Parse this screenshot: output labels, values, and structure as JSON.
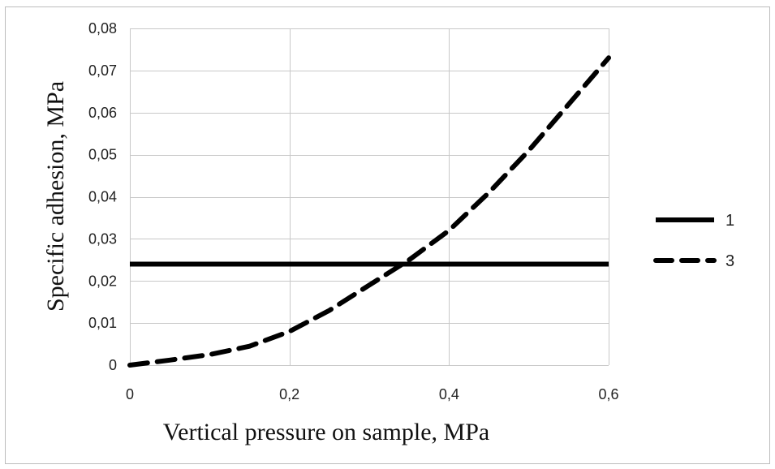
{
  "chart_data": {
    "type": "line",
    "title": "",
    "xlabel": "Vertical pressure on sample, MPa",
    "ylabel": "Specific adhesion, MPa",
    "xlim": [
      0,
      0.6
    ],
    "ylim": [
      0,
      0.08
    ],
    "x_ticks": [
      "0",
      "0,2",
      "0,4",
      "0,6"
    ],
    "x_tick_values": [
      0,
      0.2,
      0.4,
      0.6
    ],
    "y_ticks": [
      "0",
      "0,01",
      "0,02",
      "0,03",
      "0,04",
      "0,05",
      "0,06",
      "0,07",
      "0,08"
    ],
    "y_tick_values": [
      0,
      0.01,
      0.02,
      0.03,
      0.04,
      0.05,
      0.06,
      0.07,
      0.08
    ],
    "grid": true,
    "legend_position": "right",
    "series": [
      {
        "name": "1",
        "style": "solid",
        "color": "#000000",
        "x": [
          0,
          0.6
        ],
        "y": [
          0.024,
          0.024
        ]
      },
      {
        "name": "3",
        "style": "dashed",
        "color": "#000000",
        "x": [
          0,
          0.05,
          0.1,
          0.15,
          0.2,
          0.25,
          0.3,
          0.35,
          0.4,
          0.45,
          0.5,
          0.55,
          0.6
        ],
        "y": [
          0,
          0.0012,
          0.0025,
          0.0045,
          0.008,
          0.013,
          0.019,
          0.025,
          0.032,
          0.041,
          0.051,
          0.062,
          0.073
        ]
      }
    ]
  }
}
